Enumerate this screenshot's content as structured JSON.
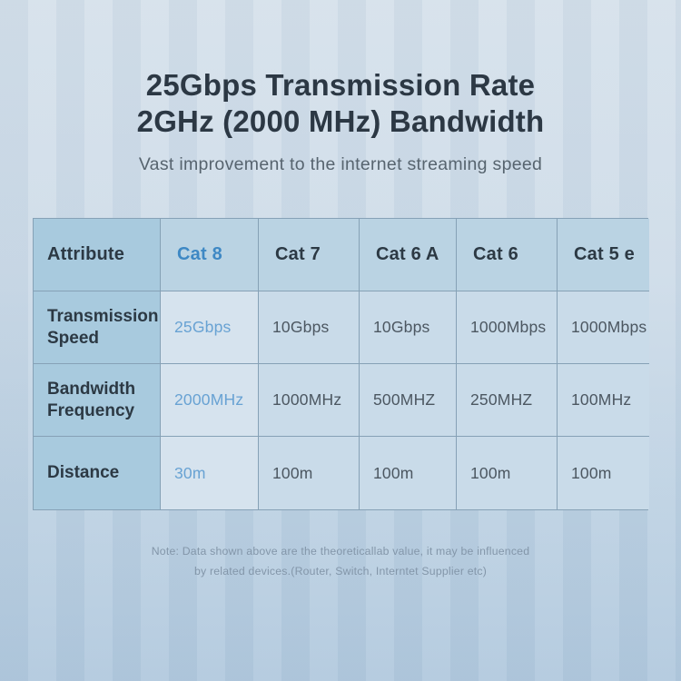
{
  "header": {
    "title_line1": "25Gbps Transmission Rate",
    "title_line2": "2GHz (2000 MHz) Bandwidth",
    "subtitle": "Vast improvement to the internet streaming speed"
  },
  "chart_data": {
    "type": "table",
    "title": "25Gbps Transmission Rate 2GHz (2000 MHz) Bandwidth",
    "subtitle": "Vast improvement to the internet streaming speed",
    "columns": [
      "Attribute",
      "Cat 8",
      "Cat 7",
      "Cat 6 A",
      "Cat 6",
      "Cat 5 e"
    ],
    "rows": [
      [
        "Transmission Speed",
        "25Gbps",
        "10Gbps",
        "10Gbps",
        "1000Mbps",
        "1000Mbps"
      ],
      [
        "Bandwidth Frequency",
        "2000MHz",
        "1000MHz",
        "500MHZ",
        "250MHZ",
        "100MHz"
      ],
      [
        "Distance",
        "30m",
        "100m",
        "100m",
        "100m",
        "100m"
      ]
    ],
    "highlighted_column": "Cat 8",
    "note": "Note: Data shown above are the theoreticallab value, it may be influenced by related devices.(Router, Switch, Interntet Supplier etc)"
  },
  "note": {
    "line1": "Note: Data shown above are the theoreticallab value, it may be influenced",
    "line2": "by related devices.(Router, Switch, Interntet Supplier etc)"
  },
  "colors": {
    "accent_blue": "#3e88c4",
    "accent_blue_light": "#68a2d3",
    "title_text": "#2c3844",
    "subtitle_text": "#57646f",
    "value_text": "#4c5761",
    "note_text": "#8396a9",
    "attr_column_bg": "#a8cade",
    "header_row_bg": "#bad3e3",
    "data_cell_bg": "#c9dbe9",
    "highlight_cell_bg": "#d6e3ee",
    "table_border": "#86a1b6",
    "page_bg_top": "#d6e1eb",
    "page_bg_bottom": "#b2c9de"
  }
}
